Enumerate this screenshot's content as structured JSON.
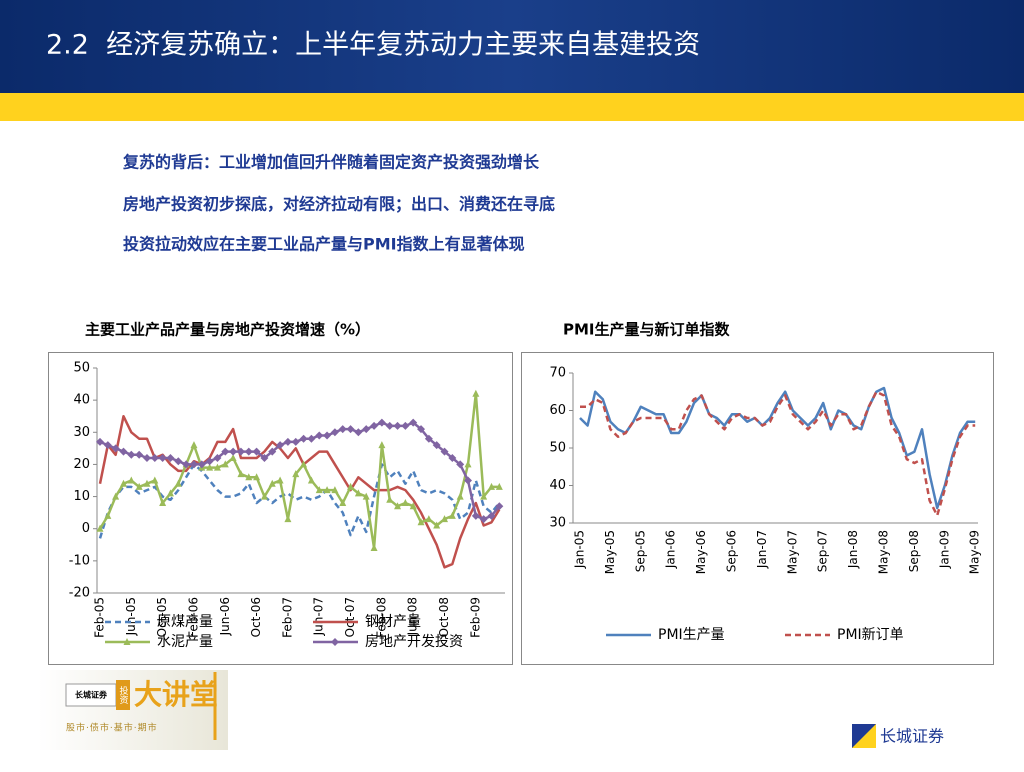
{
  "header": {
    "title": "2.2  经济复苏确立：上半年复苏动力主要来自基建投资"
  },
  "bullets": [
    "复苏的背后：工业增加值回升伴随着固定资产投资强劲增长",
    "房地产投资初步探底，对经济拉动有限；出口、消费还在寻底",
    "投资拉动效应在主要工业品产量与PMI指数上有显著体现"
  ],
  "chart_data": [
    {
      "type": "line",
      "title": "主要工业产品产量与房地产投资增速（%）",
      "categories": [
        "Feb-05",
        null,
        null,
        null,
        "Jun-05",
        null,
        null,
        null,
        "Oct-05",
        null,
        null,
        null,
        "Feb-06",
        null,
        null,
        null,
        "Jun-06",
        null,
        null,
        null,
        "Oct-06",
        null,
        null,
        null,
        "Feb-07",
        null,
        null,
        null,
        "Jun-07",
        null,
        null,
        null,
        "Oct-07",
        null,
        null,
        null,
        "Feb-08",
        null,
        null,
        null,
        "Jun-08",
        null,
        null,
        null,
        "Oct-08",
        null,
        null,
        null,
        "Feb-09",
        null,
        null,
        null
      ],
      "series": [
        {
          "name": "原煤产量",
          "color": "#4f81bd",
          "dash": true,
          "marker": "none",
          "values": [
            -3,
            5,
            10,
            13,
            13,
            11,
            12,
            13,
            10,
            9,
            12,
            16,
            20,
            18,
            15,
            12,
            10,
            10,
            11,
            14,
            8,
            10,
            8,
            10,
            11,
            9,
            10,
            9,
            10,
            12,
            8,
            5,
            -2,
            4,
            -1,
            10,
            20,
            16,
            18,
            14,
            18,
            12,
            11,
            12,
            11,
            9,
            3,
            5,
            15,
            7,
            5,
            8
          ]
        },
        {
          "name": "钢材产量",
          "color": "#c0504d",
          "dash": false,
          "marker": "none",
          "values": [
            14,
            26,
            23,
            35,
            30,
            28,
            28,
            22,
            23,
            20,
            18,
            18,
            21,
            20,
            22,
            27,
            27,
            31,
            22,
            22,
            22,
            24,
            27,
            25,
            22,
            25,
            20,
            22,
            24,
            24,
            20,
            16,
            12,
            16,
            14,
            12,
            12,
            12,
            13,
            12,
            9,
            5,
            0,
            -5,
            -12,
            -11,
            -3,
            3,
            8,
            1,
            2,
            6
          ]
        },
        {
          "name": "水泥产量",
          "color": "#9bbb59",
          "dash": false,
          "marker": "triangle",
          "values": [
            0,
            4,
            10,
            14,
            15,
            13,
            14,
            15,
            8,
            11,
            14,
            20,
            26,
            19,
            19,
            19,
            20,
            22,
            17,
            16,
            16,
            10,
            14,
            15,
            3,
            17,
            20,
            15,
            12,
            12,
            12,
            8,
            13,
            11,
            10,
            -6,
            26,
            9,
            7,
            8,
            7,
            2,
            3,
            1,
            3,
            4,
            10,
            20,
            42,
            10,
            13,
            13
          ]
        },
        {
          "name": "房地产开发投资",
          "color": "#8064a2",
          "dash": false,
          "marker": "diamond",
          "values": [
            27,
            26,
            25,
            24,
            23,
            23,
            22,
            22,
            22,
            22,
            21,
            20,
            20,
            20,
            21,
            22,
            24,
            24,
            24,
            24,
            24,
            22,
            24,
            26,
            27,
            27,
            28,
            28,
            29,
            29,
            30,
            31,
            31,
            30,
            31,
            32,
            33,
            32,
            32,
            32,
            33,
            31,
            28,
            26,
            24,
            22,
            20,
            15,
            4,
            3,
            4,
            7
          ]
        }
      ],
      "ylim": [
        -20,
        50
      ],
      "yticks": [
        -20,
        -10,
        0,
        10,
        20,
        30,
        40,
        50
      ],
      "grid": false,
      "legend": "bottom"
    },
    {
      "type": "line",
      "title": "PMI生产量与新订单指数",
      "categories": [
        "Jan-05",
        null,
        null,
        null,
        "May-05",
        null,
        null,
        null,
        "Sep-05",
        null,
        null,
        null,
        "Jan-06",
        null,
        null,
        null,
        "May-06",
        null,
        null,
        null,
        "Sep-06",
        null,
        null,
        null,
        "Jan-07",
        null,
        null,
        null,
        "May-07",
        null,
        null,
        null,
        "Sep-07",
        null,
        null,
        null,
        "Jan-08",
        null,
        null,
        null,
        "May-08",
        null,
        null,
        null,
        "Sep-08",
        null,
        null,
        null,
        "Jan-09",
        null,
        null,
        null,
        "May-09"
      ],
      "series": [
        {
          "name": "PMI生产量",
          "color": "#4f81bd",
          "dash": false,
          "marker": "none",
          "values": [
            58,
            56,
            65,
            63,
            57,
            55,
            54,
            57,
            61,
            60,
            59,
            59,
            54,
            54,
            57,
            62,
            64,
            59,
            58,
            56,
            59,
            59,
            57,
            58,
            56,
            58,
            62,
            65,
            60,
            58,
            56,
            58,
            62,
            55,
            60,
            59,
            56,
            55,
            61,
            65,
            66,
            58,
            54,
            48,
            49,
            55,
            43,
            34,
            40,
            48,
            54,
            57,
            57
          ]
        },
        {
          "name": "PMI新订单",
          "color": "#c0504d",
          "dash": true,
          "marker": "none",
          "values": [
            61,
            61,
            63,
            62,
            55,
            53,
            54,
            57,
            58,
            58,
            58,
            58,
            55,
            55,
            60,
            63,
            64,
            59,
            57,
            55,
            58,
            59,
            58,
            58,
            56,
            57,
            61,
            64,
            59,
            57,
            55,
            57,
            60,
            56,
            59,
            59,
            55,
            56,
            61,
            65,
            64,
            56,
            53,
            47,
            46,
            47,
            36,
            32,
            39,
            47,
            53,
            56,
            56
          ]
        }
      ],
      "ylim": [
        30,
        70
      ],
      "yticks": [
        30,
        40,
        50,
        60,
        70
      ],
      "grid": false,
      "legend": "bottom"
    }
  ],
  "logo": {
    "brand": "长城证券",
    "tag": "投资",
    "name": "大讲堂",
    "slogan": "股市·债市·基市·期市"
  },
  "footer": {
    "company": "长城证券"
  }
}
